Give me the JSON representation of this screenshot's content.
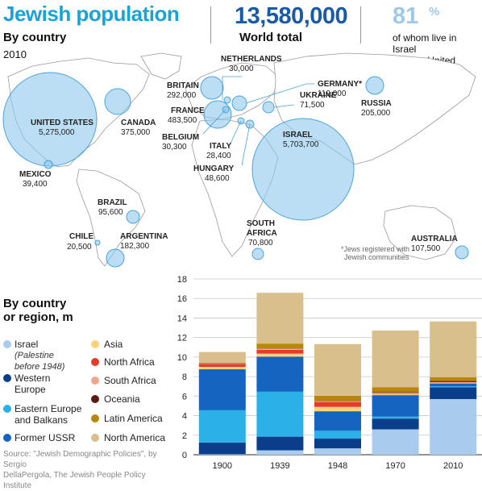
{
  "header": {
    "title": "Jewish population",
    "subtitle": "By country",
    "year": "2010",
    "world_total_value": "13,580,000",
    "world_total_label": "World total",
    "share_value": "81",
    "share_symbol": "%",
    "share_label_line1": "of whom live in Israel",
    "share_label_line2": "and the United States"
  },
  "map": {
    "footnote_line1": "*Jews registered with",
    "footnote_line2": "Jewish communities",
    "countries": [
      {
        "name": "UNITED STATES",
        "value": "5,275,000",
        "population": 5275000
      },
      {
        "name": "CANADA",
        "value": "375,000",
        "population": 375000
      },
      {
        "name": "MEXICO",
        "value": "39,400",
        "population": 39400
      },
      {
        "name": "BRAZIL",
        "value": "95,600",
        "population": 95600
      },
      {
        "name": "CHILE",
        "value": "20,500",
        "population": 20500
      },
      {
        "name": "ARGENTINA",
        "value": "182,300",
        "population": 182300
      },
      {
        "name": "BRITAIN",
        "value": "292,000",
        "population": 292000
      },
      {
        "name": "NETHERLANDS",
        "value": "30,000",
        "population": 30000
      },
      {
        "name": "GERMANY*",
        "value": "119,000",
        "population": 119000
      },
      {
        "name": "FRANCE",
        "value": "483,500",
        "population": 483500
      },
      {
        "name": "BELGIUM",
        "value": "30,300",
        "population": 30300
      },
      {
        "name": "UKRAINE",
        "value": "71,500",
        "population": 71500
      },
      {
        "name": "RUSSIA",
        "value": "205,000",
        "population": 205000
      },
      {
        "name": "ITALY",
        "value": "28,400",
        "population": 28400
      },
      {
        "name": "HUNGARY",
        "value": "48,600",
        "population": 48600
      },
      {
        "name": "ISRAEL",
        "value": "5,703,700",
        "population": 5703700
      },
      {
        "name": "SOUTH AFRICA",
        "value": "70,800",
        "population": 70800
      },
      {
        "name": "AUSTRALIA",
        "value": "107,500",
        "population": 107500
      }
    ]
  },
  "legend": {
    "title_line1": "By country",
    "title_line2": "or region, m",
    "items": [
      {
        "label": "Israel",
        "note_line1": "(Palestine",
        "note_line2": "before 1948)",
        "color": "#a9ccee"
      },
      {
        "label": "Western",
        "label2": "Europe",
        "color": "#0a3d8a"
      },
      {
        "label": "Eastern Europe",
        "label2": "and Balkans",
        "color": "#2bb0e8"
      },
      {
        "label": "Former USSR",
        "color": "#1565c0"
      },
      {
        "label": "Asia",
        "color": "#fcd27a"
      },
      {
        "label": "North Africa",
        "color": "#e83a2a"
      },
      {
        "label": "South Africa",
        "color": "#f3a58c"
      },
      {
        "label": "Oceania",
        "color": "#5a1a10"
      },
      {
        "label": "Latin America",
        "color": "#b8860b"
      },
      {
        "label": "North America",
        "color": "#d9bf8c"
      }
    ]
  },
  "source_line1": "Source: \"Jewish Demographic Policies\", by Sergio",
  "source_line2": "DellaPergola, The Jewish People Policy Institute",
  "chart_data": {
    "type": "bar",
    "stacked": true,
    "categories": [
      "1900",
      "1939",
      "1948",
      "1970",
      "2010"
    ],
    "ylim": [
      0,
      18
    ],
    "yticks": [
      0,
      2,
      4,
      6,
      8,
      10,
      12,
      14,
      16,
      18
    ],
    "grid": true,
    "series": [
      {
        "name": "Israel",
        "color": "#a9ccee",
        "values": [
          0.05,
          0.45,
          0.65,
          2.6,
          5.7
        ]
      },
      {
        "name": "Western Europe",
        "color": "#0a3d8a",
        "values": [
          1.2,
          1.4,
          1.0,
          1.1,
          1.2
        ]
      },
      {
        "name": "Eastern Europe and Balkans",
        "color": "#2bb0e8",
        "values": [
          3.3,
          4.6,
          0.8,
          0.2,
          0.1
        ]
      },
      {
        "name": "Former USSR",
        "color": "#1565c0",
        "values": [
          4.2,
          3.6,
          2.0,
          2.2,
          0.3
        ]
      },
      {
        "name": "Asia",
        "color": "#fcd27a",
        "values": [
          0.25,
          0.3,
          0.45,
          0.1,
          0.05
        ]
      },
      {
        "name": "North Africa",
        "color": "#e83a2a",
        "values": [
          0.3,
          0.4,
          0.5,
          0.05,
          0.02
        ]
      },
      {
        "name": "South Africa",
        "color": "#f3a58c",
        "values": [
          0.05,
          0.1,
          0.1,
          0.1,
          0.07
        ]
      },
      {
        "name": "Oceania",
        "color": "#5a1a10",
        "values": [
          0.02,
          0.03,
          0.03,
          0.07,
          0.11
        ]
      },
      {
        "name": "Latin America",
        "color": "#b8860b",
        "values": [
          0.05,
          0.5,
          0.5,
          0.5,
          0.4
        ]
      },
      {
        "name": "North America",
        "color": "#d9bf8c",
        "values": [
          1.1,
          5.2,
          5.3,
          5.8,
          5.7
        ]
      }
    ]
  }
}
